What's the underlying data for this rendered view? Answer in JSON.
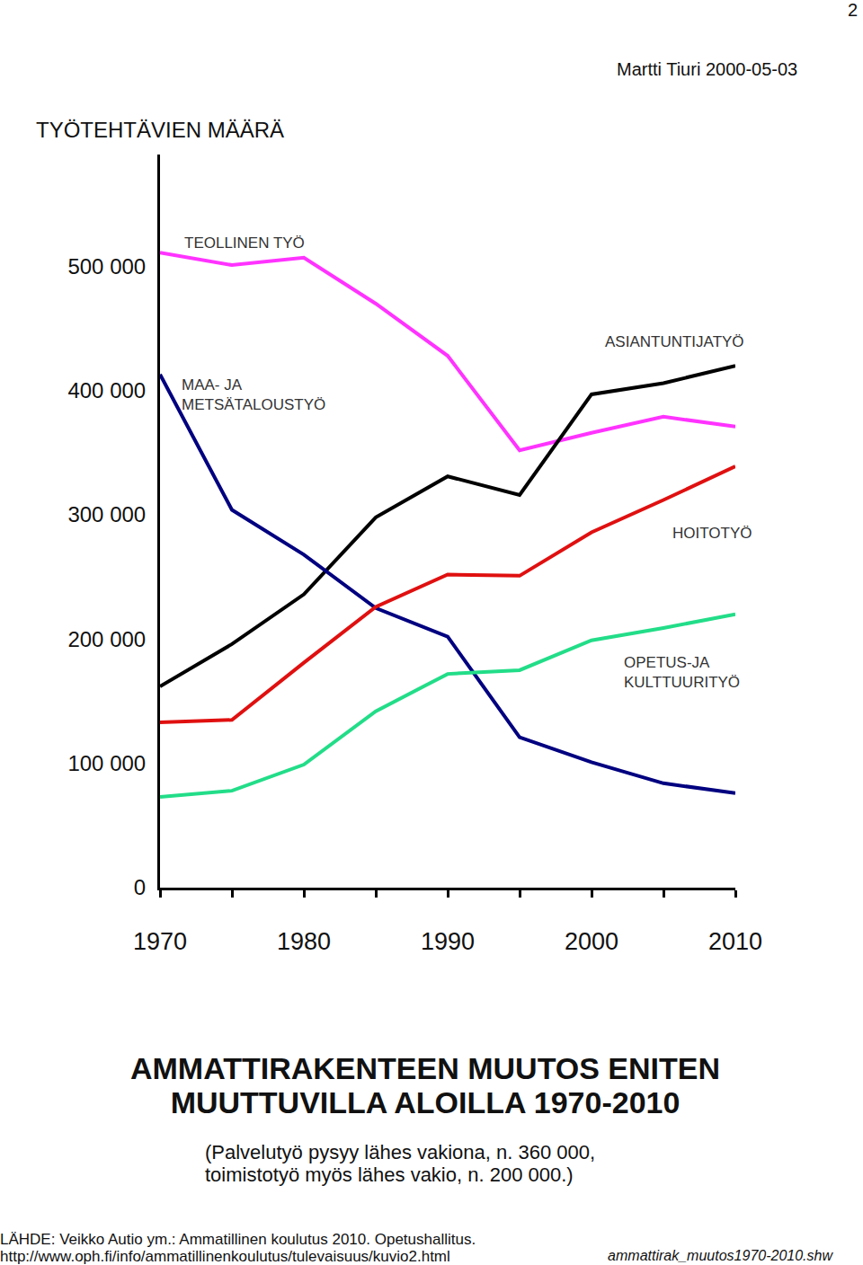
{
  "page": {
    "number": "2",
    "author_date": "Martti Tiuri 2000-05-03"
  },
  "chart_data": {
    "type": "line",
    "title": "TYÖTEHTÄVIEN MÄÄRÄ",
    "x": [
      1970,
      1975,
      1980,
      1985,
      1990,
      1995,
      2000,
      2005,
      2010
    ],
    "series": [
      {
        "name": "TEOLLINEN TYÖ",
        "color": "#ff33ff",
        "values": [
          511000,
          501000,
          507000,
          470000,
          428000,
          352000,
          366000,
          379000,
          371000
        ]
      },
      {
        "name": "ASIANTUNTIJATYÖ",
        "color": "#000000",
        "values": [
          162000,
          196000,
          236000,
          298000,
          331000,
          316000,
          397000,
          406000,
          420000
        ]
      },
      {
        "name": "MAA- JA METSÄTALOUSTYÖ",
        "color": "#000080",
        "values": [
          413000,
          304000,
          268000,
          225000,
          202000,
          121000,
          101000,
          84000,
          76000
        ]
      },
      {
        "name": "HOITOTYÖ",
        "color": "#e01010",
        "values": [
          133000,
          135000,
          181000,
          226000,
          252000,
          251000,
          286000,
          312000,
          339000
        ]
      },
      {
        "name": "OPETUS-JA KULTTUURITYÖ",
        "color": "#22dd88",
        "values": [
          73000,
          78000,
          99000,
          142000,
          172000,
          175000,
          199000,
          209000,
          220000
        ]
      }
    ],
    "xlim": [
      1970,
      2010
    ],
    "xticks": [
      1970,
      1980,
      1990,
      2000,
      2010
    ],
    "ylim": [
      0,
      590000
    ],
    "yticks": [
      0,
      {
        "value": 100000,
        "label": "100 000"
      },
      {
        "value": 200000,
        "label": "200 000"
      },
      {
        "value": 300000,
        "label": "300 000"
      },
      {
        "value": 400000,
        "label": "400 000"
      },
      {
        "value": 500000,
        "label": "500 000"
      }
    ],
    "grid": false
  },
  "caption": {
    "heading": [
      "AMMATTIRAKENTEEN MUUTOS ENITEN",
      "MUUTTUVILLA ALOILLA 1970-2010"
    ],
    "note": [
      "(Palvelutyö pysyy lähes vakiona, n. 360 000,",
      "toimistotyö myös lähes vakio, n. 200 000.)"
    ]
  },
  "source": [
    "LÄHDE: Veikko Autio ym.: Ammatillinen koulutus 2010. Opetushallitus.",
    "http://www.oph.fi/info/ammatillinenkoulutus/tulevaisuus/kuvio2.html"
  ],
  "file": "ammattirak_muutos1970-2010.shw"
}
